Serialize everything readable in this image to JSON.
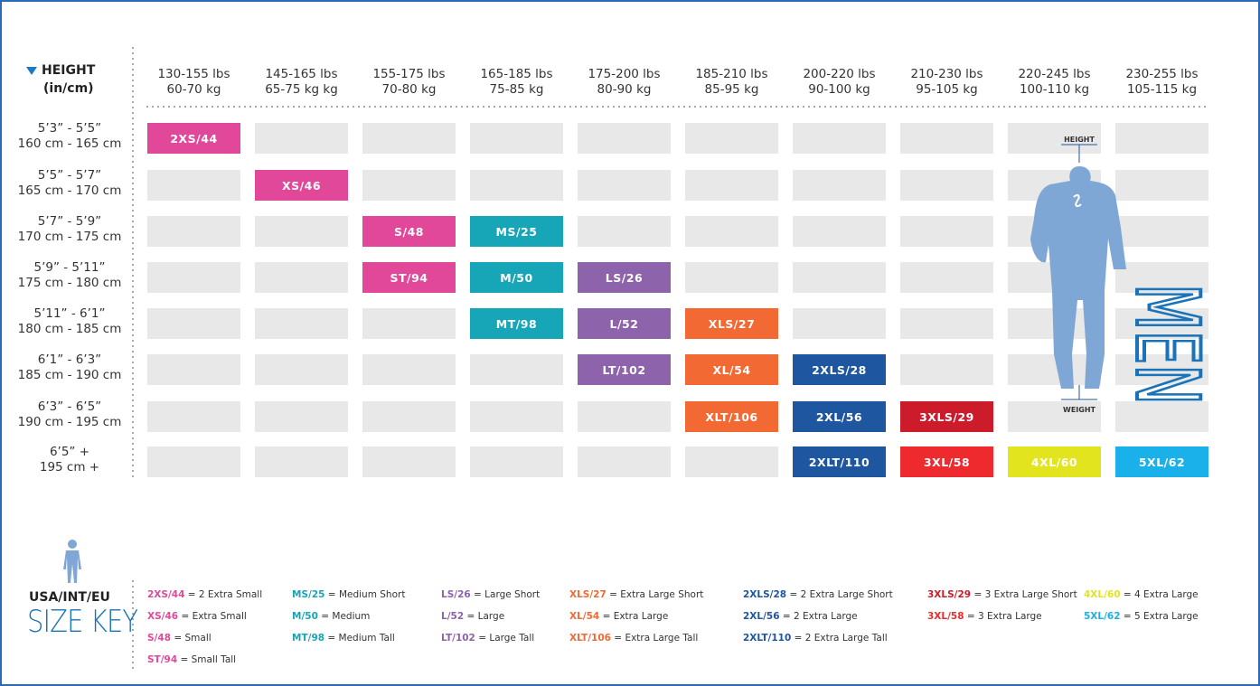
{
  "header": {
    "title": "HEIGHT",
    "subtitle": "(in/cm)"
  },
  "columns": [
    [
      "130-155 lbs",
      "60-70 kg"
    ],
    [
      "145-165 lbs",
      "65-75 kg kg"
    ],
    [
      "155-175 lbs",
      "70-80 kg"
    ],
    [
      "165-185 lbs",
      "75-85 kg"
    ],
    [
      "175-200 lbs",
      "80-90 kg"
    ],
    [
      "185-210 lbs",
      "85-95 kg"
    ],
    [
      "200-220 lbs",
      "90-100 kg"
    ],
    [
      "210-230 lbs",
      "95-105 kg"
    ],
    [
      "220-245 lbs",
      "100-110 kg"
    ],
    [
      "230-255 lbs",
      "105-115 kg"
    ]
  ],
  "rows": [
    {
      "height": [
        "5’3” - 5’5”",
        "160 cm - 165 cm"
      ],
      "cells": [
        {
          "label": "2XS/44",
          "color": "#e2489a"
        },
        null,
        null,
        null,
        null,
        null,
        null,
        null,
        null,
        null
      ]
    },
    {
      "height": [
        "5’5” - 5’7”",
        "165 cm - 170 cm"
      ],
      "cells": [
        null,
        {
          "label": "XS/46",
          "color": "#e2489a"
        },
        null,
        null,
        null,
        null,
        null,
        null,
        null,
        null
      ]
    },
    {
      "height": [
        "5’7” - 5’9”",
        "170 cm - 175 cm"
      ],
      "cells": [
        null,
        null,
        {
          "label": "S/48",
          "color": "#e2489a"
        },
        {
          "label": "MS/25",
          "color": "#17a6b8"
        },
        null,
        null,
        null,
        null,
        null,
        null
      ]
    },
    {
      "height": [
        "5’9” - 5’11”",
        "175 cm - 180 cm"
      ],
      "cells": [
        null,
        null,
        {
          "label": "ST/94",
          "color": "#e2489a"
        },
        {
          "label": "M/50",
          "color": "#17a6b8"
        },
        {
          "label": "LS/26",
          "color": "#8d63ab"
        },
        null,
        null,
        null,
        null,
        null
      ]
    },
    {
      "height": [
        "5’11” - 6’1”",
        "180 cm - 185 cm"
      ],
      "cells": [
        null,
        null,
        null,
        {
          "label": "MT/98",
          "color": "#17a6b8"
        },
        {
          "label": "L/52",
          "color": "#8d63ab"
        },
        {
          "label": "XLS/27",
          "color": "#f26934"
        },
        null,
        null,
        null,
        null
      ]
    },
    {
      "height": [
        "6’1” - 6’3”",
        "185 cm - 190 cm"
      ],
      "cells": [
        null,
        null,
        null,
        null,
        {
          "label": "LT/102",
          "color": "#8d63ab"
        },
        {
          "label": "XL/54",
          "color": "#f26934"
        },
        {
          "label": "2XLS/28",
          "color": "#1f56a0"
        },
        null,
        null,
        null
      ]
    },
    {
      "height": [
        "6’3” - 6’5”",
        "190 cm - 195 cm"
      ],
      "cells": [
        null,
        null,
        null,
        null,
        null,
        {
          "label": "XLT/106",
          "color": "#f26934"
        },
        {
          "label": "2XL/56",
          "color": "#1f56a0"
        },
        {
          "label": "3XLS/29",
          "color": "#cc1c2b"
        },
        null,
        null
      ]
    },
    {
      "height": [
        "6’5” +",
        "195 cm +"
      ],
      "cells": [
        null,
        null,
        null,
        null,
        null,
        null,
        {
          "label": "2XLT/110",
          "color": "#1f56a0"
        },
        {
          "label": "3XL/58",
          "color": "#ee2a2e"
        },
        {
          "label": "4XL/60",
          "color": "#e2e51e"
        },
        {
          "label": "5XL/62",
          "color": "#1ab1ea"
        }
      ]
    }
  ],
  "figure": {
    "top_label": "HEIGHT",
    "bottom_label": "WEIGHT",
    "text": "MEN"
  },
  "key": {
    "title": "USA/INT/EU",
    "subtitle": "SIZE KEY",
    "columns": [
      [
        {
          "code": "2XS/44",
          "desc": "= 2 Extra Small",
          "color": "#e2489a"
        },
        {
          "code": "XS/46",
          "desc": "= Extra Small",
          "color": "#e2489a"
        },
        {
          "code": "S/48",
          "desc": "= Small",
          "color": "#e2489a"
        },
        {
          "code": "ST/94",
          "desc": "= Small Tall",
          "color": "#e2489a"
        }
      ],
      [
        {
          "code": "MS/25",
          "desc": "= Medium Short",
          "color": "#17a6b8"
        },
        {
          "code": "M/50",
          "desc": "= Medium",
          "color": "#17a6b8"
        },
        {
          "code": "MT/98",
          "desc": "= Medium Tall",
          "color": "#17a6b8"
        }
      ],
      [
        {
          "code": "LS/26",
          "desc": "= Large Short",
          "color": "#8d63ab"
        },
        {
          "code": "L/52",
          "desc": "= Large",
          "color": "#8d63ab"
        },
        {
          "code": "LT/102",
          "desc": "= Large Tall",
          "color": "#8d63ab"
        }
      ],
      [
        {
          "code": "XLS/27",
          "desc": "= Extra Large Short",
          "color": "#f26934"
        },
        {
          "code": "XL/54",
          "desc": "= Extra Large",
          "color": "#f26934"
        },
        {
          "code": "XLT/106",
          "desc": "= Extra Large Tall",
          "color": "#f26934"
        }
      ],
      [
        {
          "code": "2XLS/28",
          "desc": "= 2 Extra Large Short",
          "color": "#1f56a0"
        },
        {
          "code": "2XL/56",
          "desc": "= 2 Extra Large",
          "color": "#1f56a0"
        },
        {
          "code": "2XLT/110",
          "desc": "= 2 Extra Large Tall",
          "color": "#1f56a0"
        }
      ],
      [
        {
          "code": "3XLS/29",
          "desc": "= 3 Extra Large Short",
          "color": "#cc1c2b"
        },
        {
          "code": "3XL/58",
          "desc": "= 3 Extra Large",
          "color": "#ee2a2e"
        }
      ],
      [
        {
          "code": "4XL/60",
          "desc": "= 4 Extra Large",
          "color": "#e2e51e"
        },
        {
          "code": "5XL/62",
          "desc": "= 5 Extra Large",
          "color": "#1ab1ea"
        }
      ]
    ]
  }
}
